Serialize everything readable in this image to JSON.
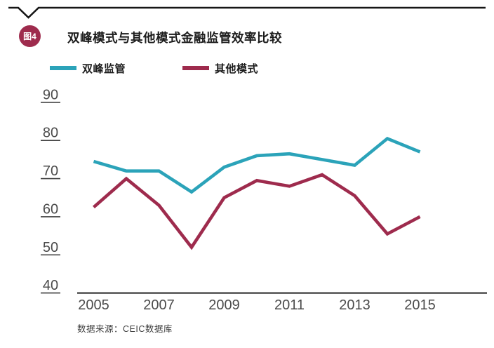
{
  "figure": {
    "badge": "图4",
    "title": "双峰模式与其他模式金融监管效率比较",
    "source": "数据来源：CEIC数据库"
  },
  "legend": [
    {
      "label": "双峰监管",
      "color": "#2ba3b9"
    },
    {
      "label": "其他模式",
      "color": "#9e2b4d"
    }
  ],
  "colors": {
    "accent_teal": "#2ba3b9",
    "accent_maroon": "#9e2b4d",
    "axis_text": "#4b4b4b",
    "axis_line": "#222222",
    "tick_line": "#3d3d3d",
    "border": "#161616"
  },
  "chart_data": {
    "type": "line",
    "title": "双峰模式与其他模式金融监管效率比较",
    "x": [
      2005,
      2006,
      2007,
      2008,
      2009,
      2010,
      2011,
      2012,
      2013,
      2014,
      2015
    ],
    "series": [
      {
        "name": "双峰监管",
        "color": "#2ba3b9",
        "values": [
          74.5,
          72,
          72,
          66.5,
          73,
          76,
          76.5,
          75,
          73.5,
          80.5,
          77
        ]
      },
      {
        "name": "其他模式",
        "color": "#9e2b4d",
        "values": [
          62.5,
          70,
          63,
          52,
          65,
          69.5,
          68,
          71,
          65.5,
          55.5,
          60
        ]
      }
    ],
    "ylim": [
      40,
      90
    ],
    "yticks": [
      90,
      80,
      70,
      60,
      50,
      40
    ],
    "xticks": [
      2005,
      2007,
      2009,
      2011,
      2013,
      2015
    ],
    "xlabel": "",
    "ylabel": "",
    "grid": false,
    "legend_position": "top-left",
    "source": "数据来源：CEIC数据库"
  }
}
